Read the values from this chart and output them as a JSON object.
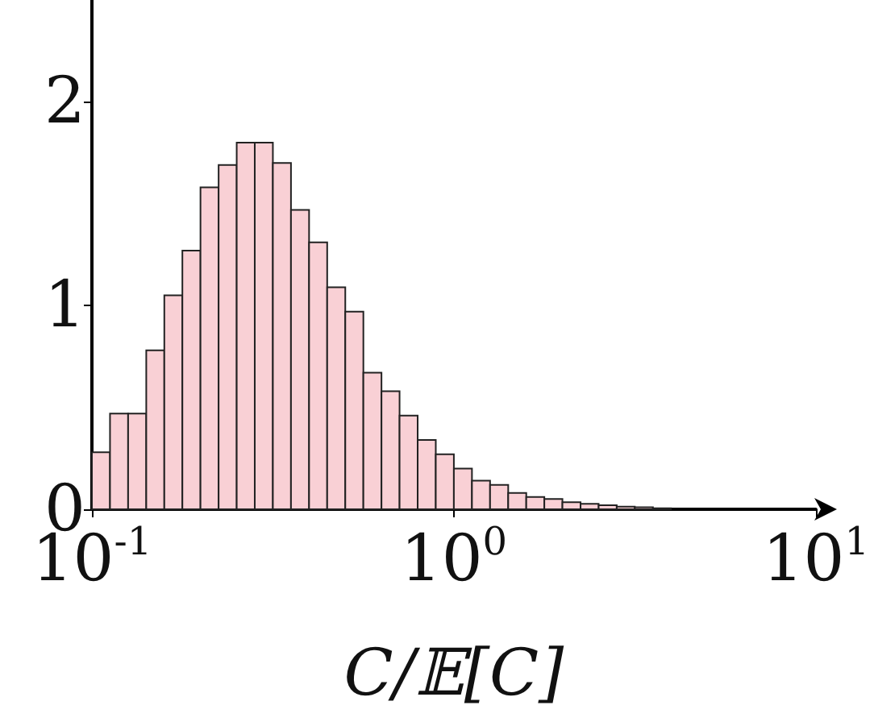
{
  "chart_data": {
    "type": "histogram",
    "xlabel": "C/𝔼[C]",
    "log": "x",
    "color": "#f9d0d5",
    "bins": [
      0.1,
      0.1122,
      0.1259,
      0.1413,
      0.1585,
      0.1778,
      0.1995,
      0.2239,
      0.2512,
      0.2818,
      0.3162,
      0.3548,
      0.3981,
      0.4467,
      0.5012,
      0.5623,
      0.631,
      0.7079,
      0.7943,
      0.8913,
      1,
      1.122,
      1.259,
      1.413,
      1.585,
      1.778,
      1.995,
      2.239,
      2.512,
      2.818,
      3.162,
      3.548,
      3.981,
      4.467
    ],
    "values": [
      0.28,
      0.47,
      0.47,
      0.78,
      1.05,
      1.27,
      1.58,
      1.69,
      1.8,
      1.8,
      1.7,
      1.47,
      1.31,
      1.09,
      0.97,
      0.67,
      0.58,
      0.46,
      0.34,
      0.27,
      0.2,
      0.14,
      0.12,
      0.08,
      0.06,
      0.05,
      0.035,
      0.027,
      0.02,
      0.013,
      0.01,
      0.005,
      null
    ],
    "xlim": [
      0.1,
      10
    ],
    "xticks": [
      {
        "value": 0.1,
        "label": "10$^{-1}$"
      },
      {
        "value": 1,
        "label": "10$^{0}$"
      },
      {
        "value": 10,
        "label": "10$^{1}$"
      }
    ],
    "ylim": [
      0,
      2.5
    ],
    "yticks": [
      0,
      1,
      2
    ],
    "grid": false
  }
}
